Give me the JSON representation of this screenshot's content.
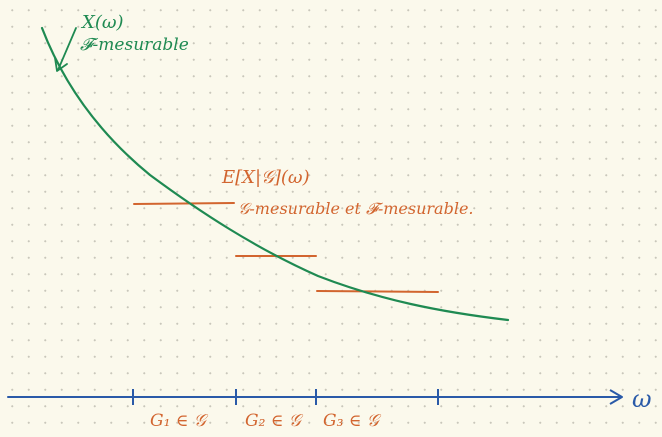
{
  "colors": {
    "curve": "#1f8a52",
    "conditional": "#d2652f",
    "axis": "#2a5aa8",
    "background": "#fbf9ec"
  },
  "labels": {
    "x_of_omega": "X(ω)",
    "f_measurable": "𝓕-mesurable",
    "cond_exp": "E[X|𝒢](ω)",
    "cond_exp_desc": "𝒢-mesurable et 𝓕-mesurable.",
    "axis_label": "ω",
    "g1": "G₁ ∈ 𝒢",
    "g2": "G₂ ∈ 𝒢",
    "g3": "G₃ ∈ 𝒢"
  }
}
